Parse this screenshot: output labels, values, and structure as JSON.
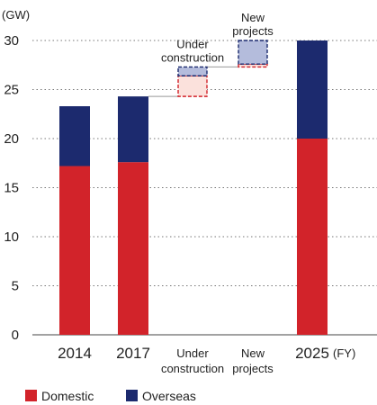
{
  "chart_data": {
    "type": "bar",
    "stacked": true,
    "y_unit": "(GW)",
    "x_unit": "(FY)",
    "ylim": [
      0,
      30
    ],
    "yticks": [
      0,
      5,
      10,
      15,
      20,
      25,
      30
    ],
    "grid": true,
    "categories": [
      {
        "lines": [
          "2014"
        ],
        "small": false
      },
      {
        "lines": [
          "2017"
        ],
        "small": false
      },
      {
        "lines": [
          "Under",
          "construction"
        ],
        "small": true
      },
      {
        "lines": [
          "New",
          "projects"
        ],
        "small": true
      },
      {
        "lines": [
          "2025"
        ],
        "small": false
      }
    ],
    "series": [
      {
        "name": "Domestic",
        "color": "#d2232a",
        "values": [
          17.2,
          17.6,
          null,
          null,
          20.0
        ]
      },
      {
        "name": "Overseas",
        "color": "#1c2a6e",
        "values": [
          6.1,
          6.7,
          null,
          null,
          10.0
        ]
      }
    ],
    "waterfall": [
      {
        "category_index": 2,
        "start": 24.3,
        "domestic": 2.1,
        "overseas": 0.9
      },
      {
        "category_index": 3,
        "start": 27.3,
        "domestic": 0.3,
        "overseas": 2.4
      }
    ],
    "waterfall_colors": {
      "domestic_fill": "#fbe1dc",
      "domestic_edge": "#d2232a",
      "overseas_fill": "#b4bcdc",
      "overseas_edge": "#1c2a6e"
    },
    "annotations": [
      {
        "lines": [
          "Under",
          "construction"
        ],
        "category_index": 2
      },
      {
        "lines": [
          "New",
          "projects"
        ],
        "category_index": 3
      }
    ],
    "legend": [
      {
        "label": "Domestic",
        "color": "#d2232a"
      },
      {
        "label": "Overseas",
        "color": "#1c2a6e"
      }
    ],
    "legend_position": "bottom-left"
  }
}
